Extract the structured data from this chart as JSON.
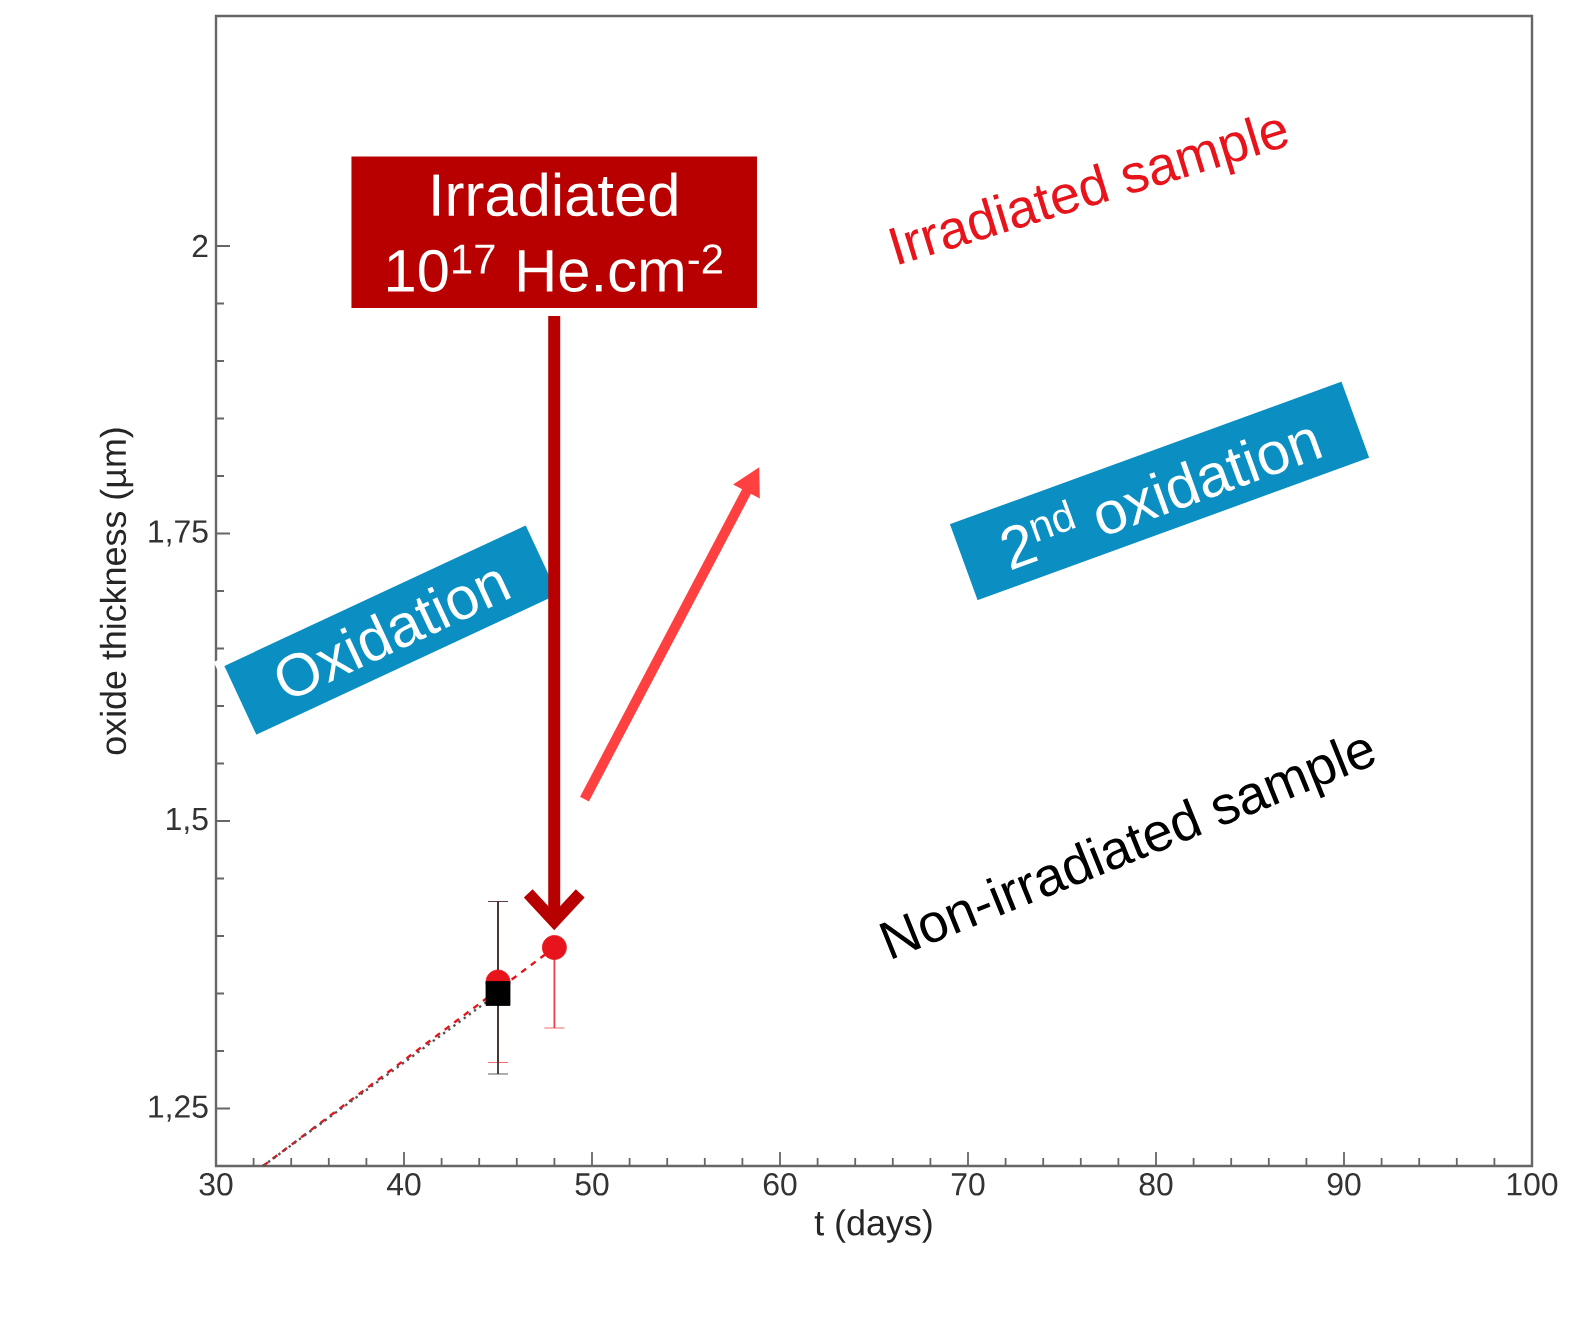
{
  "chart_data": {
    "type": "scatter",
    "xlabel": "t (days)",
    "ylabel": "oxide thickness (µm)",
    "xlim": [
      30,
      100
    ],
    "ylim": [
      1.2,
      2.2
    ],
    "xticks": [
      30,
      40,
      50,
      60,
      70,
      80,
      90,
      100
    ],
    "yticks": [
      {
        "value": 1.25,
        "label": "1,25"
      },
      {
        "value": 1.5,
        "label": "1,5"
      },
      {
        "value": 1.75,
        "label": "1,75"
      },
      {
        "value": 2,
        "label": "2"
      }
    ],
    "series": [
      {
        "name": "Irradiated sample",
        "color": "#e8141b",
        "marker": "circle",
        "x": [
          45,
          48
        ],
        "values": [
          1.36,
          1.39
        ],
        "errors": [
          [
            1.29,
            1.43
          ],
          [
            1.32,
            1.39
          ]
        ]
      },
      {
        "name": "Non-irradiated sample",
        "color": "#000000",
        "marker": "square",
        "x": [
          45
        ],
        "values": [
          1.35
        ],
        "errors": [
          [
            1.28,
            1.43
          ]
        ]
      },
      {
        "type": "line",
        "color": "#e8141b",
        "line_style": "dashed",
        "marker": "none",
        "x": [
          32.5,
          48
        ],
        "values": [
          1.2,
          1.39
        ]
      },
      {
        "type": "line",
        "color": "#555555",
        "line_style": "dotted",
        "marker": "none",
        "x": [
          32.5,
          45
        ],
        "values": [
          1.2,
          1.35
        ]
      }
    ],
    "annotations": [
      "Irradiated",
      "10$^{17}$ He.cm$^{-2}$",
      "Oxidation",
      "2$^{nd}$ oxidation"
    ]
  }
}
